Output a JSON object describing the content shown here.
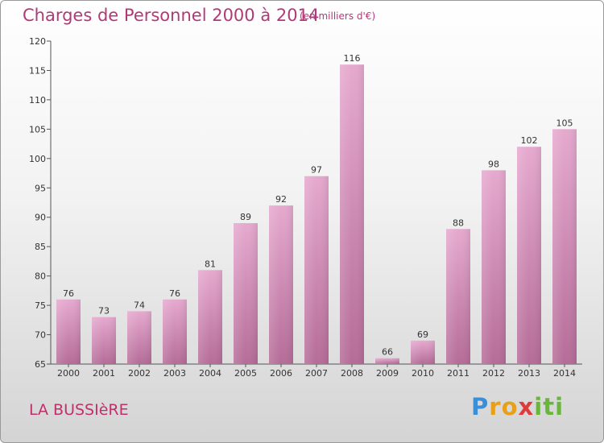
{
  "title": "Charges de Personnel 2000 à 2014",
  "subtitle": "(en milliers d'€)",
  "place": "LA BUSSIèRE",
  "logo": {
    "text": "Proxiti",
    "colors": [
      "#3b8fd6",
      "#e8a01a",
      "#e03a3a",
      "#6ab53c"
    ]
  },
  "chart_data": {
    "type": "bar",
    "categories": [
      "2000",
      "2001",
      "2002",
      "2003",
      "2004",
      "2005",
      "2006",
      "2007",
      "2008",
      "2009",
      "2010",
      "2011",
      "2012",
      "2013",
      "2014"
    ],
    "values": [
      76,
      73,
      74,
      76,
      81,
      89,
      92,
      97,
      116,
      66,
      69,
      88,
      98,
      102,
      105
    ],
    "ylim": [
      65,
      120
    ],
    "yticks": [
      65,
      70,
      75,
      80,
      85,
      90,
      95,
      100,
      105,
      110,
      115,
      120
    ],
    "grid": false,
    "bar_color": "#d58ab5"
  }
}
